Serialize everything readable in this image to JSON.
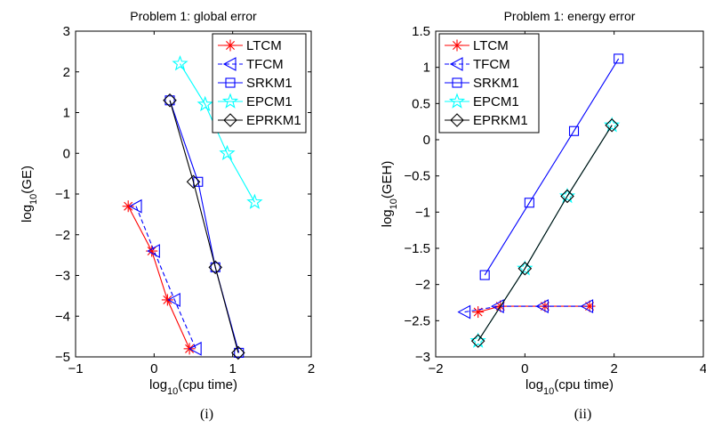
{
  "chart_data": [
    {
      "type": "line",
      "title": "Problem 1: global error",
      "xlabel": "log10(cpu time)",
      "ylabel": "log10(GE)",
      "xlim": [
        -1,
        2
      ],
      "ylim": [
        -5,
        3
      ],
      "xticks": [
        "−1",
        "0",
        "1",
        "2"
      ],
      "yticks": [
        "3",
        "2",
        "1",
        "0",
        "−1",
        "−2",
        "−3",
        "−4",
        "−5"
      ],
      "grid": false,
      "legend_position": "top-right",
      "caption": "(i)",
      "series": [
        {
          "name": "LTCM",
          "color": "#ff0000",
          "marker": "star",
          "dash": "solid",
          "x": [
            -0.33,
            -0.03,
            0.17,
            0.45
          ],
          "y": [
            -1.3,
            -2.4,
            -3.6,
            -4.8
          ]
        },
        {
          "name": "TFCM",
          "color": "#0000ff",
          "marker": "triangle-left",
          "dash": "dashed",
          "x": [
            -0.23,
            0.0,
            0.26,
            0.53
          ],
          "y": [
            -1.3,
            -2.4,
            -3.6,
            -4.8
          ]
        },
        {
          "name": "SRKM1",
          "color": "#0000ff",
          "marker": "square",
          "dash": "solid",
          "x": [
            0.2,
            0.56,
            0.78,
            1.08
          ],
          "y": [
            1.3,
            -0.7,
            -2.8,
            -4.9
          ]
        },
        {
          "name": "EPCM1",
          "color": "#00ffff",
          "marker": "pentagram",
          "dash": "solid",
          "x": [
            0.33,
            0.65,
            0.93,
            1.28
          ],
          "y": [
            2.2,
            1.2,
            0.0,
            -1.2
          ]
        },
        {
          "name": "EPRKM1",
          "color": "#000000",
          "marker": "diamond",
          "dash": "solid",
          "x": [
            0.2,
            0.5,
            0.78,
            1.07
          ],
          "y": [
            1.3,
            -0.7,
            -2.8,
            -4.9
          ]
        }
      ]
    },
    {
      "type": "line",
      "title": "Problem 1: energy error",
      "xlabel": "log10(cpu time)",
      "ylabel": "log10(GEH)",
      "xlim": [
        -2,
        4
      ],
      "ylim": [
        -3,
        1.5
      ],
      "xticks": [
        "−2",
        "0",
        "2",
        "4"
      ],
      "yticks": [
        "1.5",
        "1",
        "0.5",
        "0",
        "−0.5",
        "−1",
        "−1.5",
        "−2",
        "−2.5",
        "−3"
      ],
      "grid": false,
      "legend_position": "top-left",
      "caption": "(ii)",
      "series": [
        {
          "name": "LTCM",
          "color": "#ff0000",
          "marker": "star",
          "dash": "solid",
          "x": [
            -1.05,
            -0.55,
            0.45,
            1.45
          ],
          "y": [
            -2.38,
            -2.3,
            -2.3,
            -2.3
          ]
        },
        {
          "name": "TFCM",
          "color": "#0000ff",
          "marker": "triangle-left",
          "dash": "dashed",
          "x": [
            -1.35,
            -0.6,
            0.4,
            1.4
          ],
          "y": [
            -2.38,
            -2.3,
            -2.3,
            -2.3
          ]
        },
        {
          "name": "SRKM1",
          "color": "#0000ff",
          "marker": "square",
          "dash": "solid",
          "x": [
            -0.9,
            0.1,
            1.1,
            2.1
          ],
          "y": [
            -1.87,
            -0.87,
            0.12,
            1.12
          ]
        },
        {
          "name": "EPCM1",
          "color": "#00ffff",
          "marker": "pentagram",
          "dash": "solid",
          "x": [
            -1.05,
            0.0,
            0.95,
            1.95
          ],
          "y": [
            -2.78,
            -1.78,
            -0.78,
            0.2
          ]
        },
        {
          "name": "EPRKM1",
          "color": "#000000",
          "marker": "diamond",
          "dash": "solid",
          "x": [
            -1.05,
            0.0,
            0.95,
            1.95
          ],
          "y": [
            -2.78,
            -1.78,
            -0.78,
            0.2
          ]
        }
      ]
    }
  ]
}
